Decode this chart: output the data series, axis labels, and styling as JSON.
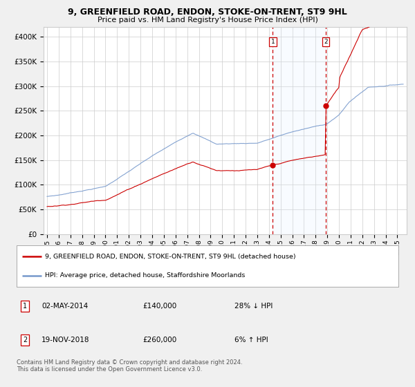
{
  "title": "9, GREENFIELD ROAD, ENDON, STOKE-ON-TRENT, ST9 9HL",
  "subtitle": "Price paid vs. HM Land Registry's House Price Index (HPI)",
  "legend_label_red": "9, GREENFIELD ROAD, ENDON, STOKE-ON-TRENT, ST9 9HL (detached house)",
  "legend_label_blue": "HPI: Average price, detached house, Staffordshire Moorlands",
  "annotation1_date": "02-MAY-2014",
  "annotation1_price": "£140,000",
  "annotation1_hpi": "28% ↓ HPI",
  "annotation2_date": "19-NOV-2018",
  "annotation2_price": "£260,000",
  "annotation2_hpi": "6% ↑ HPI",
  "footer": "Contains HM Land Registry data © Crown copyright and database right 2024.\nThis data is licensed under the Open Government Licence v3.0.",
  "sale1_year": 2014.33,
  "sale1_price": 140000,
  "sale2_year": 2018.89,
  "sale2_price": 260000,
  "ylim_max": 420000,
  "ylim_min": 0,
  "background_color": "#f0f0f0",
  "plot_bg_color": "#ffffff",
  "red_color": "#cc0000",
  "blue_color": "#7799cc",
  "shade_color": "#ddeeff",
  "grid_color": "#cccccc"
}
